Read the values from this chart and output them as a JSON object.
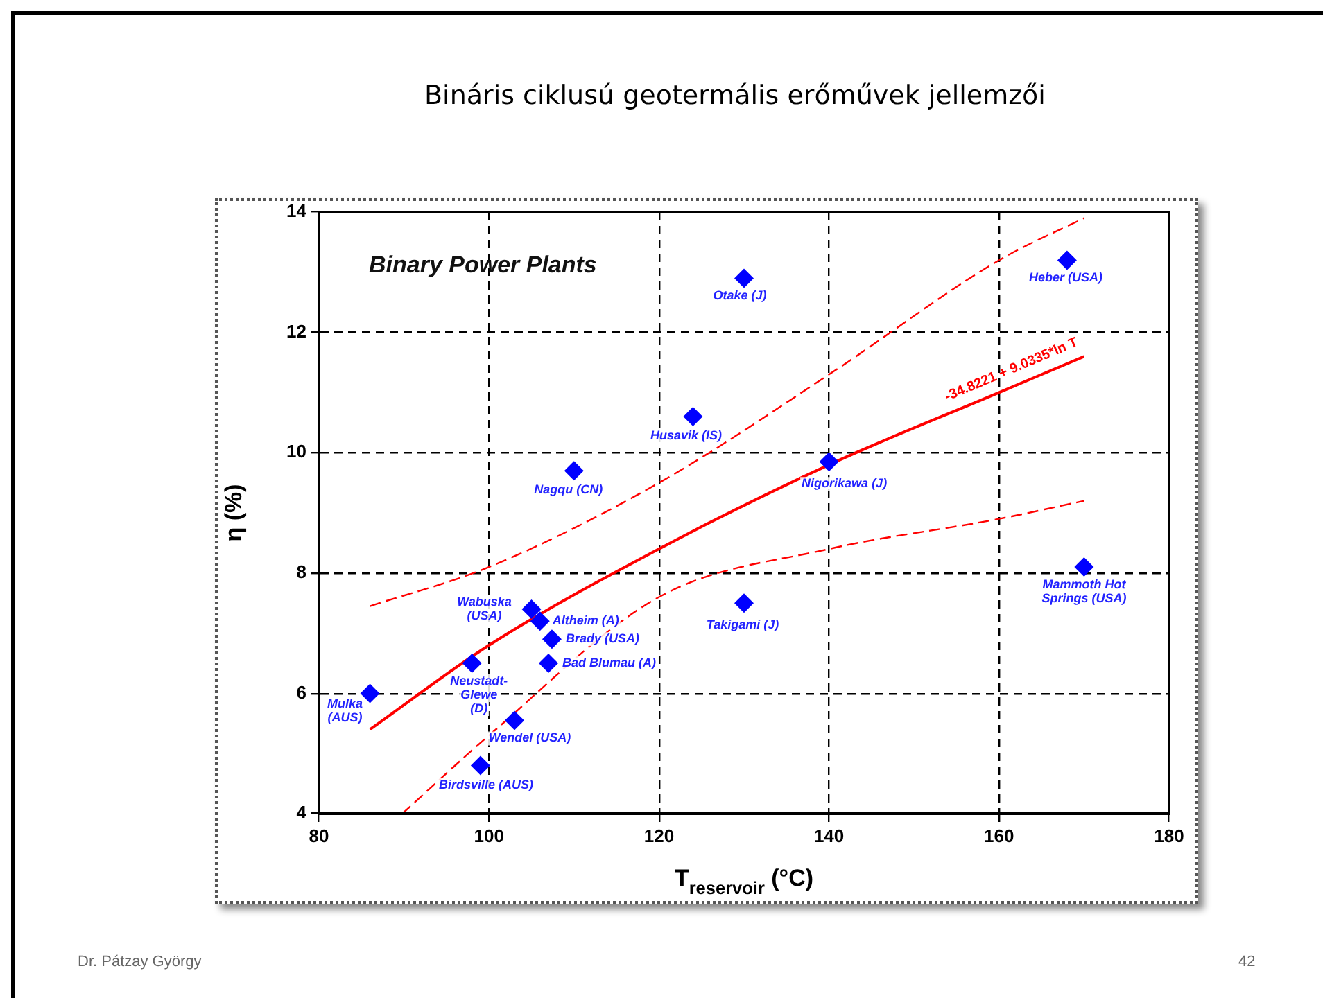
{
  "chart_data": {
    "type": "scatter",
    "title": "Bináris ciklusú geotermális erőművek  jellemzői",
    "xlabel": "T$_{reservoir}$ (°C)",
    "ylabel": "η (%)",
    "xlim": [
      80,
      180
    ],
    "xticks": [
      80,
      100,
      120,
      140,
      160,
      180
    ],
    "ylim": [
      4,
      14
    ],
    "yticks": [
      4,
      6,
      8,
      10,
      12,
      14
    ],
    "grid": true,
    "marker": "diamond",
    "series": [
      {
        "type": "scatter",
        "color": "#0000ff",
        "x": [
          86,
          98,
          99,
          103,
          105,
          106,
          107.4,
          107,
          110,
          124,
          130,
          130,
          140,
          168,
          170
        ],
        "values": [
          6.0,
          6.5,
          4.8,
          5.55,
          7.4,
          7.2,
          6.9,
          6.5,
          9.7,
          10.6,
          12.9,
          7.5,
          9.85,
          13.2,
          8.1
        ]
      },
      {
        "type": "line",
        "color": "#ff0000",
        "line_style": "solid",
        "marker": "none",
        "x": [
          86,
          100,
          120,
          140,
          160,
          170
        ],
        "values": [
          5.4,
          6.8,
          8.4,
          9.8,
          11.0,
          11.6
        ]
      },
      {
        "type": "line",
        "color": "#ff0000",
        "line_style": "dashed",
        "marker": "none",
        "x": [
          86,
          100,
          120,
          140,
          160,
          170
        ],
        "values": [
          7.45,
          8.1,
          9.5,
          11.3,
          13.2,
          13.9
        ]
      },
      {
        "type": "line",
        "color": "#ff0000",
        "line_style": "dashed",
        "marker": "none",
        "x": [
          89.8,
          100,
          120,
          140,
          160,
          170
        ],
        "values": [
          4.0,
          5.3,
          7.6,
          8.4,
          8.9,
          9.2
        ]
      }
    ],
    "annotations": [
      "Binary Power Plants",
      "-34.8221 + 9.0335*ln T",
      {
        "text": "Mulka (AUS)",
        "x": 86,
        "y": 6.0
      },
      {
        "text": "Neustadt-Glewe (D)",
        "x": 98,
        "y": 6.5
      },
      {
        "text": "Birdsville (AUS)",
        "x": 99,
        "y": 4.8
      },
      {
        "text": "Wendel (USA)",
        "x": 103,
        "y": 5.55
      },
      {
        "text": "Wabuska (USA)",
        "x": 105,
        "y": 7.4
      },
      {
        "text": "Altheim (A)",
        "x": 106,
        "y": 7.2
      },
      {
        "text": "Brady (USA)",
        "x": 107.4,
        "y": 6.9
      },
      {
        "text": "Bad Blumau (A)",
        "x": 107,
        "y": 6.5
      },
      {
        "text": "Nagqu (CN)",
        "x": 110,
        "y": 9.7
      },
      {
        "text": "Husavik (IS)",
        "x": 124,
        "y": 10.6
      },
      {
        "text": "Otake (J)",
        "x": 130,
        "y": 12.9
      },
      {
        "text": "Takigami (J)",
        "x": 130,
        "y": 7.5
      },
      {
        "text": "Nigorikawa (J)",
        "x": 140,
        "y": 9.85
      },
      {
        "text": "Heber (USA)",
        "x": 168,
        "y": 13.2
      },
      {
        "text": "Mammoth Hot Springs (USA)",
        "x": 170,
        "y": 8.1
      },
      "Dr. Pátzay György",
      "42"
    ]
  }
}
